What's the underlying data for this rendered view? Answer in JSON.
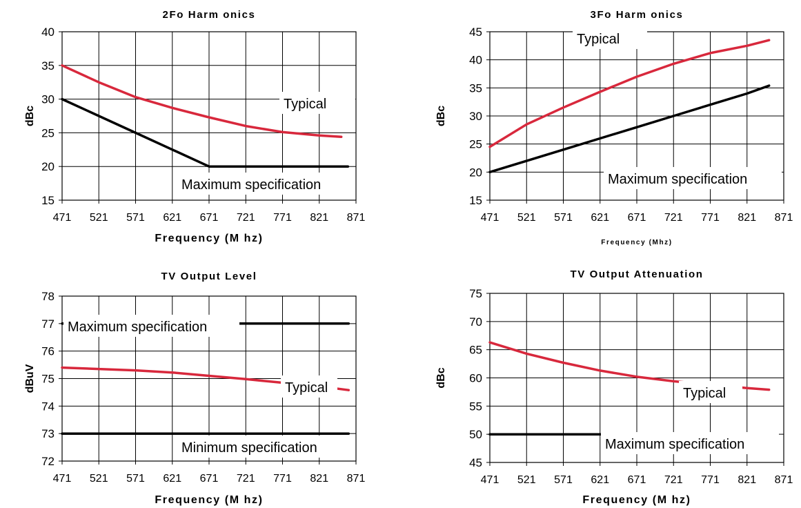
{
  "colors": {
    "typical": "#d8283c",
    "spec": "#000000",
    "grid": "#000000"
  },
  "chart_data": [
    {
      "type": "line",
      "title": "2Fo Harm onics",
      "xlabel": "Frequency (M hz)",
      "ylabel": "dBc",
      "xlim": [
        471,
        871
      ],
      "ylim": [
        15,
        40
      ],
      "xticks": [
        "471",
        "521",
        "571",
        "621",
        "671",
        "721",
        "771",
        "821",
        "871"
      ],
      "yticks": [
        "15",
        "20",
        "25",
        "30",
        "35",
        "40"
      ],
      "grid": true,
      "series": [
        {
          "label": "Typical",
          "color": "#d8283c",
          "x": [
            471,
            521,
            571,
            621,
            671,
            721,
            771,
            821,
            851
          ],
          "y": [
            35,
            32.5,
            30.3,
            28.7,
            27.3,
            26,
            25.1,
            24.6,
            24.4
          ]
        },
        {
          "label": "Maximum specification",
          "color": "#000000",
          "x": [
            471,
            571,
            621,
            671,
            860
          ],
          "y": [
            30,
            25,
            22.5,
            20,
            20
          ]
        }
      ]
    },
    {
      "type": "line",
      "title": "3Fo Harm onics",
      "xlabel": "Frequency (Mhz)",
      "ylabel": "dBc",
      "xlim": [
        471,
        871
      ],
      "ylim": [
        15,
        45
      ],
      "xticks": [
        "471",
        "521",
        "571",
        "621",
        "671",
        "721",
        "771",
        "821",
        "871"
      ],
      "yticks": [
        "15",
        "20",
        "25",
        "30",
        "35",
        "40",
        "45"
      ],
      "grid": true,
      "series": [
        {
          "label": "Typical",
          "color": "#d8283c",
          "x": [
            471,
            521,
            571,
            621,
            671,
            721,
            771,
            821,
            851
          ],
          "y": [
            24.5,
            28.5,
            31.5,
            34.3,
            37,
            39.3,
            41.2,
            42.5,
            43.5
          ]
        },
        {
          "label": "Maximum specification",
          "color": "#000000",
          "x": [
            471,
            521,
            571,
            621,
            671,
            721,
            771,
            821,
            851
          ],
          "y": [
            20,
            22,
            24,
            26,
            28,
            30,
            32,
            34,
            35.4
          ]
        }
      ]
    },
    {
      "type": "line",
      "title": "TV Output Level",
      "xlabel": "Frequency (M hz)",
      "ylabel": "dBuV",
      "xlim": [
        471,
        871
      ],
      "ylim": [
        72,
        78
      ],
      "xticks": [
        "471",
        "521",
        "571",
        "621",
        "671",
        "721",
        "771",
        "821",
        "871"
      ],
      "yticks": [
        "72",
        "73",
        "74",
        "75",
        "76",
        "77",
        "78"
      ],
      "grid": true,
      "series": [
        {
          "label": "Maximum specification",
          "color": "#000000",
          "x": [
            471,
            861
          ],
          "y": [
            77,
            77
          ]
        },
        {
          "label": "Typical",
          "color": "#d8283c",
          "x": [
            471,
            521,
            571,
            621,
            671,
            721,
            771,
            821,
            861
          ],
          "y": [
            75.4,
            75.35,
            75.3,
            75.22,
            75.1,
            74.98,
            74.85,
            74.72,
            74.58
          ]
        },
        {
          "label": "Minimum specification",
          "color": "#000000",
          "x": [
            471,
            861
          ],
          "y": [
            73,
            73
          ]
        }
      ]
    },
    {
      "type": "line",
      "title": "TV Output Attenuation",
      "xlabel": "Frequency (M hz)",
      "ylabel": "dBc",
      "xlim": [
        471,
        871
      ],
      "ylim": [
        45,
        75
      ],
      "xticks": [
        "471",
        "521",
        "571",
        "621",
        "671",
        "721",
        "771",
        "821",
        "871"
      ],
      "yticks": [
        "45",
        "50",
        "55",
        "60",
        "65",
        "70",
        "75"
      ],
      "grid": true,
      "series": [
        {
          "label": "Typical",
          "color": "#d8283c",
          "x": [
            471,
            521,
            571,
            621,
            671,
            721,
            771,
            821,
            851
          ],
          "y": [
            66.3,
            64.3,
            62.7,
            61.3,
            60.2,
            59.4,
            58.8,
            58.2,
            57.9
          ]
        },
        {
          "label": "Maximum specification",
          "color": "#000000",
          "x": [
            471,
            851
          ],
          "y": [
            50,
            50
          ]
        }
      ]
    }
  ]
}
